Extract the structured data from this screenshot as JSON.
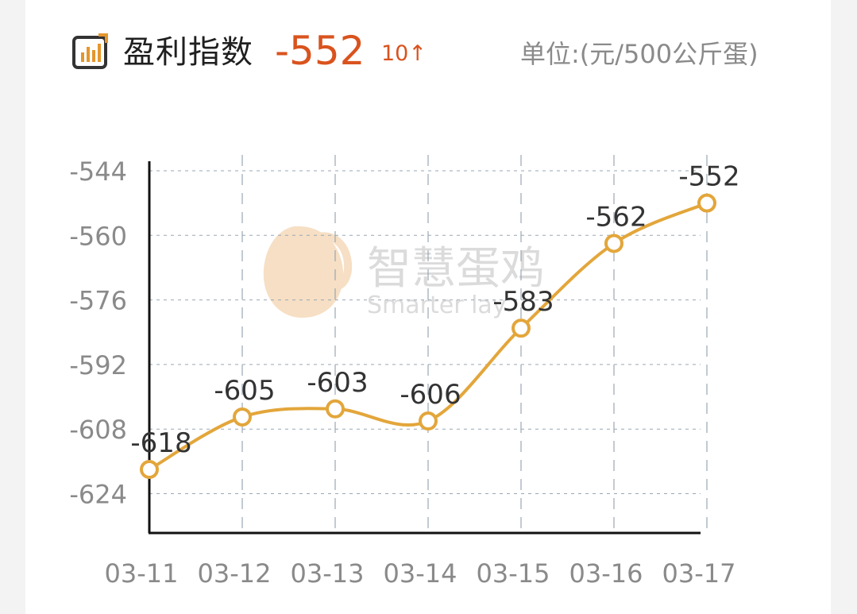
{
  "header": {
    "title": "盈利指数",
    "index_value": "-552",
    "change": "10↑",
    "unit": "单位:(元/500公斤蛋)"
  },
  "icon": "bar-chart-icon",
  "watermark": {
    "brand": "智慧蛋鸡",
    "brand_en": "Smarter lay"
  },
  "colors": {
    "line": "#e3a63b",
    "accent": "#d9531e",
    "axis": "#111111",
    "grid": "#9aa7b3",
    "tick": "#8a8a8a",
    "label": "#333333"
  },
  "chart_data": {
    "type": "line",
    "title": "盈利指数",
    "xlabel": "",
    "ylabel": "单位:(元/500公斤蛋)",
    "categories": [
      "03-11",
      "03-12",
      "03-13",
      "03-14",
      "03-15",
      "03-16",
      "03-17"
    ],
    "series": [
      {
        "values": [
          -618,
          -605,
          -603,
          -606,
          -583,
          -562,
          -552
        ]
      }
    ],
    "yticks": [
      -544,
      -560,
      -576,
      -592,
      -608,
      -624
    ],
    "ylim": [
      -637,
      -541
    ],
    "grid": true,
    "smooth": true
  }
}
